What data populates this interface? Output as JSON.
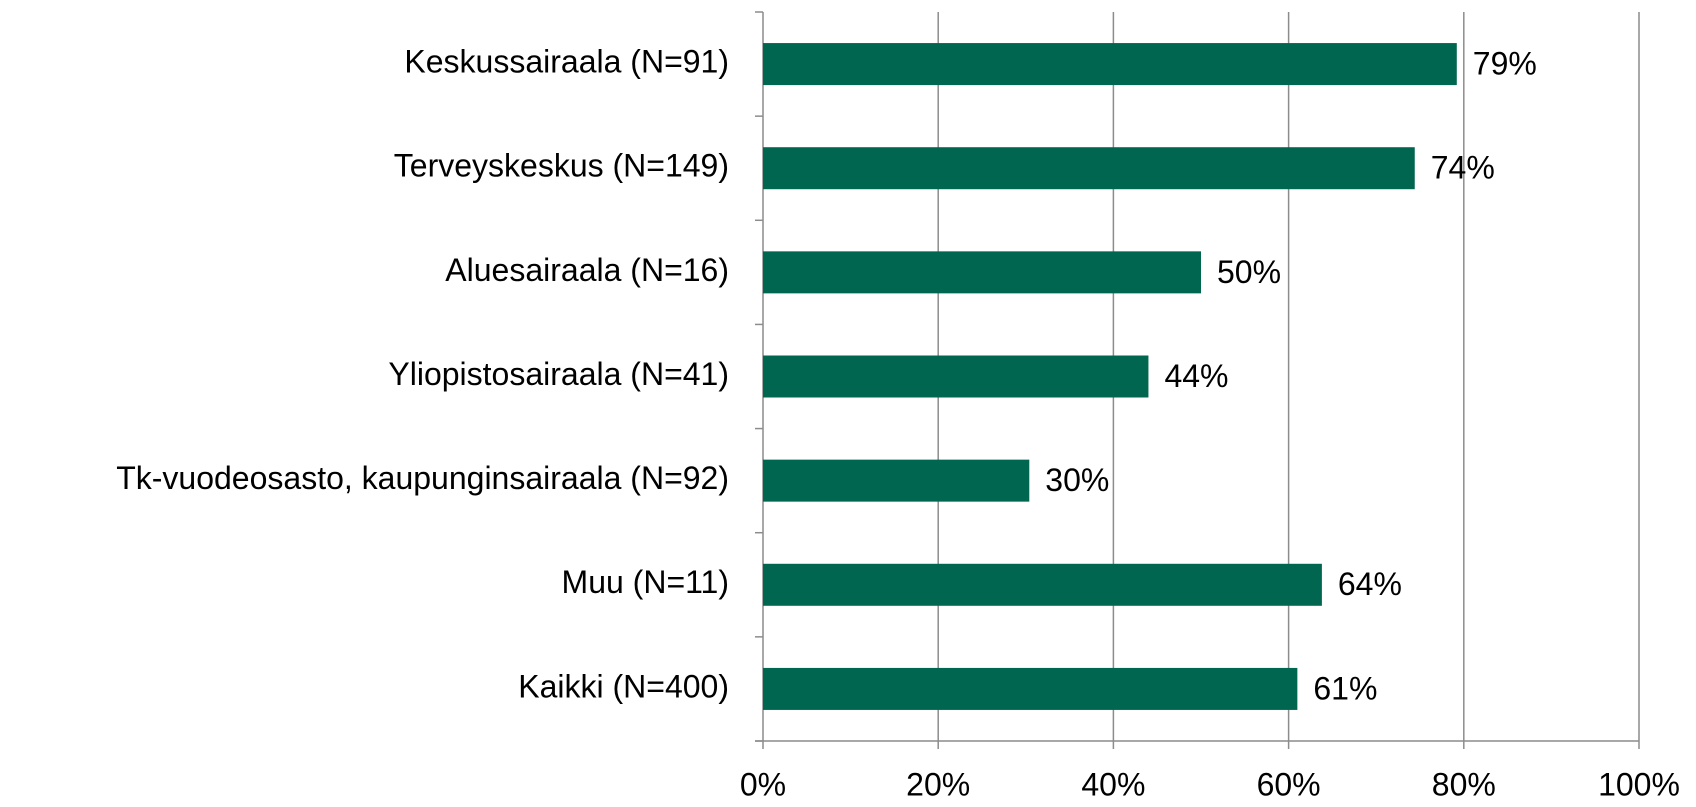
{
  "chart_data": {
    "type": "hbar",
    "categories": [
      "Keskussairaala (N=91)",
      "Terveyskeskus (N=149)",
      "Aluesairaala (N=16)",
      "Yliopistosairaala (N=41)",
      "Tk-vuodeosasto, kaupunginsairaala (N=92)",
      "Muu (N=11)",
      "Kaikki (N=400)"
    ],
    "values": [
      79.2,
      74.4,
      50,
      44,
      30.4,
      63.8,
      61
    ],
    "value_labels": [
      "79%",
      "74%",
      "50%",
      "44%",
      "30%",
      "64%",
      "61%"
    ],
    "color": "#00664f",
    "xlim": [
      0,
      100
    ],
    "xticks": [
      {
        "value": 0,
        "label": "0%"
      },
      {
        "value": 20,
        "label": "20%"
      },
      {
        "value": 40,
        "label": "40%"
      },
      {
        "value": 60,
        "label": "60%"
      },
      {
        "value": 80,
        "label": "80%"
      },
      {
        "value": 100,
        "label": "100%"
      }
    ],
    "grid": true
  }
}
